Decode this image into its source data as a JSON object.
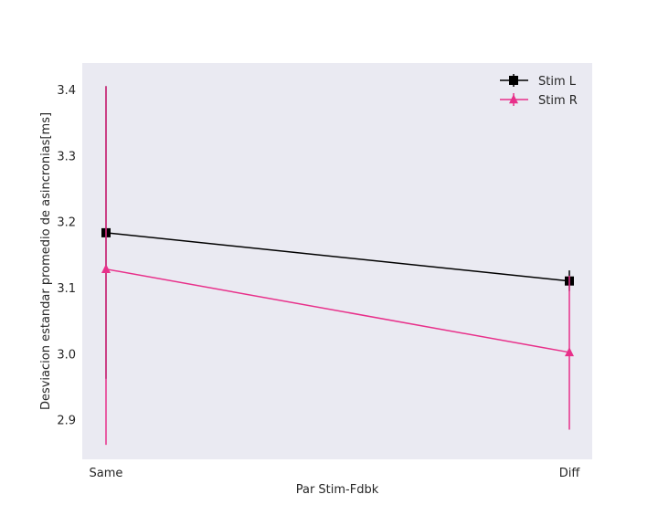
{
  "chart_data": {
    "type": "line",
    "title": "",
    "xlabel": "Par Stim-Fdbk",
    "ylabel": "Desviacion estandar promedio de asincronias[ms]",
    "categories": [
      "Same",
      "Diff"
    ],
    "ylim": [
      2.84,
      3.44
    ],
    "yticks": [
      2.9,
      3.0,
      3.1,
      3.2,
      3.3,
      3.4
    ],
    "ytick_labels": [
      "2.9",
      "3.0",
      "3.1",
      "3.2",
      "3.3",
      "3.4"
    ],
    "grid": false,
    "background": "#eaeaf2",
    "legend_position": "top-right",
    "series": [
      {
        "name": "Stim L",
        "color": "#000000",
        "marker": "square",
        "values": [
          3.183,
          3.11
        ],
        "err_low": [
          2.962,
          3.095
        ],
        "err_high": [
          3.405,
          3.126
        ]
      },
      {
        "name": "Stim R",
        "color": "#e8308a",
        "marker": "triangle",
        "values": [
          3.128,
          3.002
        ],
        "err_low": [
          2.862,
          2.885
        ],
        "err_high": [
          3.405,
          3.118
        ]
      }
    ]
  }
}
